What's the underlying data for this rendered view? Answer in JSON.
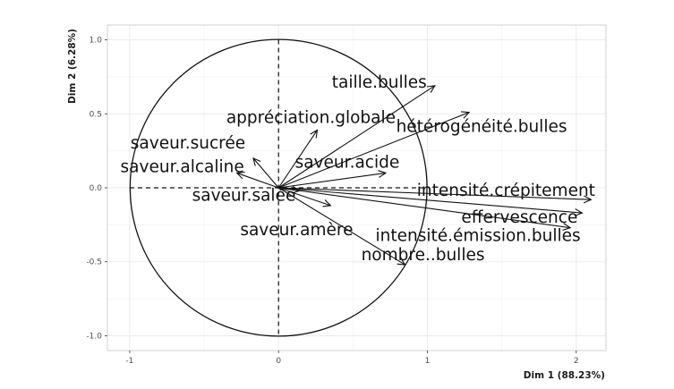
{
  "chart_data": {
    "type": "scatter",
    "subtype": "pca-variables-correlation-circle",
    "xlabel": "Dim 1 (88.23%)",
    "ylabel": "Dim 2 (6.28%)",
    "xlim": [
      -1.15,
      2.2
    ],
    "ylim": [
      -1.1,
      1.1
    ],
    "xticks": [
      -1,
      0,
      1,
      2
    ],
    "xtick_labels": [
      "-1",
      "0",
      "1",
      "2"
    ],
    "yticks": [
      -1.0,
      -0.5,
      0.0,
      0.5,
      1.0
    ],
    "ytick_labels": [
      "-1.0",
      "-0.5",
      "0.0",
      "0.5",
      "1.0"
    ],
    "grid": true,
    "unit_circle": true,
    "zero_lines": "dashed",
    "colors": {
      "background": "#ffffff",
      "panel_border": "#d0d0d0",
      "grid": "#ebebeb",
      "arrows": "#111111",
      "circle": "#111111"
    },
    "variables": [
      {
        "name": "taille.bulles",
        "x": 1.05,
        "y": 0.69
      },
      {
        "name": "appréciation.globale",
        "x": 0.26,
        "y": 0.39
      },
      {
        "name": "hétérogénéité.bulles",
        "x": 1.28,
        "y": 0.51
      },
      {
        "name": "saveur.sucrée",
        "x": -0.17,
        "y": 0.2
      },
      {
        "name": "saveur.alcaline",
        "x": -0.28,
        "y": 0.1
      },
      {
        "name": "saveur.acide",
        "x": 0.72,
        "y": 0.1
      },
      {
        "name": "saveur.salée",
        "x": 0.14,
        "y": -0.02
      },
      {
        "name": "saveur.amère",
        "x": 0.35,
        "y": -0.12
      },
      {
        "name": "intensité.crépitement",
        "x": 2.1,
        "y": -0.08
      },
      {
        "name": "effervescence",
        "x": 2.04,
        "y": -0.17
      },
      {
        "name": "intensité.émission.bulles",
        "x": 1.96,
        "y": -0.27
      },
      {
        "name": "nombre..bulles",
        "x": 0.85,
        "y": -0.52
      }
    ]
  }
}
